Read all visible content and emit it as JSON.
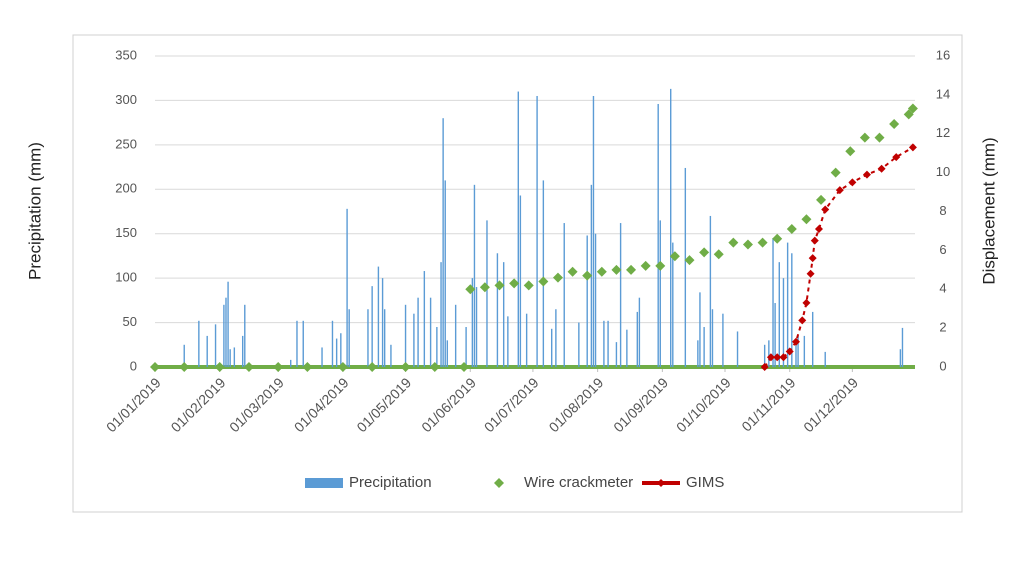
{
  "chart_data": {
    "type": "bar_line",
    "ylabel": "Precipitation (mm)",
    "y2label": "Displacement (mm)",
    "xlim": [
      "01/01/2019",
      "31/12/2019"
    ],
    "xticks": [
      "01/01/2019",
      "01/02/2019",
      "01/03/2019",
      "01/04/2019",
      "01/05/2019",
      "01/06/2019",
      "01/07/2019",
      "01/08/2019",
      "01/09/2019",
      "01/10/2019",
      "01/11/2019",
      "01/12/2019"
    ],
    "ylim": [
      0,
      350
    ],
    "yticks": [
      0,
      50,
      100,
      150,
      200,
      250,
      300,
      350
    ],
    "y2lim": [
      0,
      16
    ],
    "y2ticks": [
      0,
      2,
      4,
      6,
      8,
      10,
      12,
      14,
      16
    ],
    "legend": "bottom",
    "series": [
      {
        "name": "Precipitation",
        "type": "bar",
        "axis": "y",
        "color": "#5b9bd5",
        "x": [
          "15/01/2019",
          "22/01/2019",
          "26/01/2019",
          "30/01/2019",
          "03/02/2019",
          "04/02/2019",
          "05/02/2019",
          "06/02/2019",
          "08/02/2019",
          "12/02/2019",
          "13/02/2019",
          "07/03/2019",
          "10/03/2019",
          "13/03/2019",
          "22/03/2019",
          "27/03/2019",
          "29/03/2019",
          "31/03/2019",
          "03/04/2019",
          "04/04/2019",
          "13/04/2019",
          "15/04/2019",
          "18/04/2019",
          "20/04/2019",
          "21/04/2019",
          "24/04/2019",
          "01/05/2019",
          "05/05/2019",
          "07/05/2019",
          "10/05/2019",
          "13/05/2019",
          "16/05/2019",
          "18/05/2019",
          "19/05/2019",
          "20/05/2019",
          "21/05/2019",
          "25/05/2019",
          "30/05/2019",
          "02/06/2019",
          "03/06/2019",
          "04/06/2019",
          "09/06/2019",
          "14/06/2019",
          "17/06/2019",
          "19/06/2019",
          "24/06/2019",
          "25/06/2019",
          "28/06/2019",
          "03/07/2019",
          "06/07/2019",
          "10/07/2019",
          "12/07/2019",
          "16/07/2019",
          "23/07/2019",
          "27/07/2019",
          "29/07/2019",
          "30/07/2019",
          "31/07/2019",
          "04/08/2019",
          "06/08/2019",
          "10/08/2019",
          "12/08/2019",
          "15/08/2019",
          "20/08/2019",
          "21/08/2019",
          "30/08/2019",
          "31/08/2019",
          "05/09/2019",
          "06/09/2019",
          "12/09/2019",
          "18/09/2019",
          "19/09/2019",
          "21/09/2019",
          "24/09/2019",
          "25/09/2019",
          "30/09/2019",
          "07/10/2019",
          "20/10/2019",
          "22/10/2019",
          "24/10/2019",
          "25/10/2019",
          "27/10/2019",
          "29/10/2019",
          "31/10/2019",
          "02/11/2019",
          "04/11/2019",
          "05/11/2019",
          "08/11/2019",
          "12/11/2019",
          "18/11/2019",
          "24/12/2019",
          "25/12/2019"
        ],
        "values": [
          25,
          52,
          35,
          48,
          70,
          78,
          96,
          20,
          22,
          35,
          70,
          8,
          52,
          52,
          22,
          52,
          32,
          38,
          178,
          65,
          65,
          91,
          113,
          100,
          65,
          25,
          70,
          60,
          78,
          108,
          78,
          45,
          118,
          280,
          210,
          30,
          70,
          45,
          100,
          205,
          90,
          165,
          128,
          118,
          57,
          310,
          193,
          60,
          305,
          210,
          43,
          65,
          162,
          50,
          148,
          205,
          305,
          150,
          52,
          52,
          28,
          162,
          42,
          62,
          78,
          296,
          165,
          313,
          140,
          224,
          30,
          84,
          45,
          170,
          65,
          60,
          40,
          25,
          30,
          145,
          72,
          118,
          100,
          140,
          128,
          26,
          35,
          35,
          62,
          17,
          20,
          44
        ]
      },
      {
        "name": "Wire crackmeter",
        "type": "scatter",
        "axis": "y2",
        "color": "#70ad47",
        "x": [
          "01/01/2019",
          "15/01/2019",
          "01/02/2019",
          "15/02/2019",
          "01/03/2019",
          "15/03/2019",
          "01/04/2019",
          "15/04/2019",
          "01/05/2019",
          "15/05/2019",
          "29/05/2019",
          "01/06/2019",
          "08/06/2019",
          "15/06/2019",
          "22/06/2019",
          "29/06/2019",
          "06/07/2019",
          "13/07/2019",
          "20/07/2019",
          "27/07/2019",
          "03/08/2019",
          "10/08/2019",
          "17/08/2019",
          "24/08/2019",
          "31/08/2019",
          "07/09/2019",
          "14/09/2019",
          "21/09/2019",
          "28/09/2019",
          "05/10/2019",
          "12/10/2019",
          "19/10/2019",
          "26/10/2019",
          "02/11/2019",
          "09/11/2019",
          "16/11/2019",
          "23/11/2019",
          "30/11/2019",
          "07/12/2019",
          "14/12/2019",
          "21/12/2019",
          "28/12/2019",
          "30/12/2019"
        ],
        "values": [
          0,
          0,
          0,
          0,
          0,
          0,
          0,
          0,
          0,
          0,
          0,
          4.0,
          4.1,
          4.2,
          4.3,
          4.2,
          4.4,
          4.6,
          4.9,
          4.7,
          4.9,
          5.0,
          5.0,
          5.2,
          5.2,
          5.7,
          5.5,
          5.9,
          5.8,
          6.4,
          6.3,
          6.4,
          6.6,
          7.1,
          7.6,
          8.6,
          10.0,
          11.1,
          11.8,
          11.8,
          12.5,
          13.0,
          13.3
        ]
      },
      {
        "name": "GIMS",
        "type": "line",
        "axis": "y2",
        "color": "#c00000",
        "x": [
          "20/10/2019",
          "23/10/2019",
          "26/10/2019",
          "29/10/2019",
          "01/11/2019",
          "04/11/2019",
          "07/11/2019",
          "09/11/2019",
          "11/11/2019",
          "12/11/2019",
          "13/11/2019",
          "15/11/2019",
          "18/11/2019",
          "25/11/2019",
          "01/12/2019",
          "08/12/2019",
          "15/12/2019",
          "22/12/2019",
          "30/12/2019"
        ],
        "values": [
          0.0,
          0.5,
          0.5,
          0.5,
          0.8,
          1.3,
          2.4,
          3.3,
          4.8,
          5.6,
          6.5,
          7.1,
          8.1,
          9.1,
          9.5,
          9.9,
          10.2,
          10.8,
          11.3
        ]
      }
    ]
  }
}
